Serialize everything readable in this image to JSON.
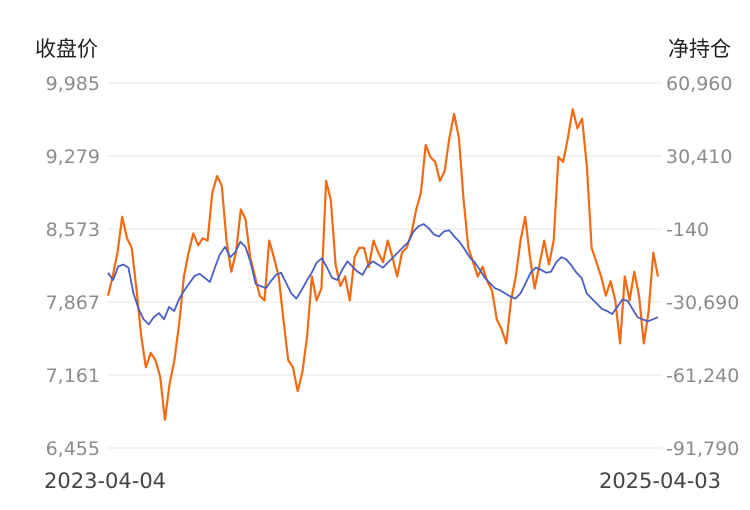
{
  "chart_data": {
    "type": "line",
    "left_axis_title": "收盘价",
    "right_axis_title": "净持仓",
    "left_ticks": [
      "9,985",
      "9,279",
      "8,573",
      "7,867",
      "7,161",
      "6,455"
    ],
    "right_ticks": [
      "60,960",
      "30,410",
      "-140",
      "-30,690",
      "-61,240",
      "-91,790"
    ],
    "ylim_left": [
      6455,
      9985
    ],
    "ylim_right": [
      -91790,
      60960
    ],
    "x_start_label": "2023-04-04",
    "x_end_label": "2025-04-03",
    "grid": true,
    "series": [
      {
        "axis": "left",
        "color": "#4a5fc1",
        "values": [
          8150,
          8080,
          8210,
          8230,
          8200,
          7950,
          7800,
          7700,
          7650,
          7720,
          7760,
          7700,
          7820,
          7780,
          7900,
          7980,
          8050,
          8120,
          8140,
          8100,
          8060,
          8200,
          8330,
          8400,
          8300,
          8350,
          8450,
          8400,
          8250,
          8040,
          8020,
          8000,
          8070,
          8130,
          8150,
          8050,
          7950,
          7900,
          7980,
          8070,
          8150,
          8250,
          8290,
          8200,
          8100,
          8080,
          8180,
          8260,
          8210,
          8160,
          8130,
          8220,
          8260,
          8230,
          8200,
          8250,
          8300,
          8350,
          8400,
          8450,
          8550,
          8600,
          8620,
          8580,
          8520,
          8500,
          8550,
          8560,
          8500,
          8450,
          8380,
          8300,
          8250,
          8180,
          8100,
          8050,
          8000,
          7980,
          7950,
          7920,
          7900,
          7950,
          8050,
          8150,
          8200,
          8180,
          8150,
          8160,
          8250,
          8300,
          8280,
          8220,
          8150,
          8100,
          7950,
          7900,
          7850,
          7800,
          7780,
          7750,
          7820,
          7890,
          7880,
          7800,
          7720,
          7700,
          7680,
          7700,
          7720
        ]
      },
      {
        "axis": "right",
        "color": "#f26a13",
        "values": [
          -28000,
          -20000,
          -10000,
          5000,
          -4000,
          -8000,
          -25000,
          -45000,
          -58000,
          -52000,
          -55000,
          -62000,
          -80000,
          -65000,
          -55000,
          -40000,
          -20000,
          -10000,
          -2000,
          -7000,
          -4000,
          -5000,
          15000,
          22000,
          18000,
          -5000,
          -18000,
          -10000,
          8000,
          4000,
          -12000,
          -20000,
          -28000,
          -30000,
          -5000,
          -12000,
          -20000,
          -38000,
          -55000,
          -58000,
          -68000,
          -60000,
          -45000,
          -20000,
          -30000,
          -25000,
          20000,
          12000,
          -15000,
          -24000,
          -20000,
          -30000,
          -12000,
          -8000,
          -8000,
          -16000,
          -5000,
          -10000,
          -14000,
          -5000,
          -12000,
          -20000,
          -10000,
          -8000,
          -2000,
          8000,
          15000,
          35000,
          30000,
          28000,
          20000,
          24000,
          38000,
          48000,
          38000,
          12000,
          -8000,
          -14000,
          -20000,
          -16000,
          -22000,
          -26000,
          -38000,
          -42000,
          -48000,
          -30000,
          -20000,
          -5000,
          5000,
          -12000,
          -25000,
          -15000,
          -5000,
          -15000,
          -5000,
          30000,
          28000,
          38000,
          50000,
          42000,
          46000,
          26000,
          -8000,
          -14000,
          -20000,
          -28000,
          -22000,
          -30000,
          -48000,
          -20000,
          -30000,
          -18000,
          -28000,
          -48000,
          -35000,
          -10000,
          -20000
        ]
      }
    ]
  }
}
